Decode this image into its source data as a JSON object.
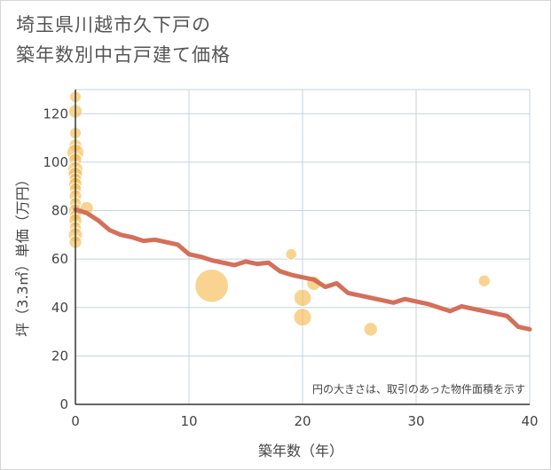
{
  "title": {
    "line1": "埼玉県川越市久下戸の",
    "line2": "築年数別中古戸建て価格"
  },
  "colors": {
    "bubble": "#f5b94e",
    "bubble_stroke": "#ffffff",
    "line": "#d4705a",
    "grid": "#c5d3df",
    "axis": "#333333"
  },
  "chart_data": {
    "type": "scatter",
    "title": "埼玉県川越市久下戸の築年数別中古戸建て価格",
    "xlabel": "築年数（年）",
    "ylabel": "坪（3.3㎡）単価（万円）",
    "xlim": [
      0,
      40
    ],
    "ylim": [
      0,
      130
    ],
    "xticks": [
      0,
      10,
      20,
      30,
      40
    ],
    "yticks": [
      0,
      20,
      40,
      60,
      80,
      100,
      120
    ],
    "grid": true,
    "note": "円の大きさは、取引のあった物件面積を示す",
    "bubbles": [
      {
        "x": 0,
        "y": 127,
        "size": 1.0
      },
      {
        "x": 0,
        "y": 121,
        "size": 1.6
      },
      {
        "x": 0,
        "y": 112,
        "size": 1.0
      },
      {
        "x": 0,
        "y": 107,
        "size": 1.3
      },
      {
        "x": 0,
        "y": 104,
        "size": 2.8
      },
      {
        "x": 0,
        "y": 101,
        "size": 1.4
      },
      {
        "x": 0,
        "y": 97,
        "size": 2.2
      },
      {
        "x": 0,
        "y": 95,
        "size": 1.8
      },
      {
        "x": 0,
        "y": 93,
        "size": 1.2
      },
      {
        "x": 0,
        "y": 91,
        "size": 1.5
      },
      {
        "x": 0,
        "y": 89,
        "size": 1.1
      },
      {
        "x": 0,
        "y": 86,
        "size": 1.3
      },
      {
        "x": 0,
        "y": 83,
        "size": 1.1
      },
      {
        "x": 0,
        "y": 80,
        "size": 1.6
      },
      {
        "x": 0,
        "y": 78,
        "size": 1.0
      },
      {
        "x": 0,
        "y": 76,
        "size": 1.4
      },
      {
        "x": 0,
        "y": 73,
        "size": 1.1
      },
      {
        "x": 0,
        "y": 70,
        "size": 1.8
      },
      {
        "x": 0,
        "y": 67,
        "size": 1.3
      },
      {
        "x": 1,
        "y": 81,
        "size": 1.5
      },
      {
        "x": 12,
        "y": 49,
        "size": 14.0
      },
      {
        "x": 19,
        "y": 62,
        "size": 0.9
      },
      {
        "x": 20,
        "y": 44,
        "size": 3.0
      },
      {
        "x": 20,
        "y": 36,
        "size": 3.2
      },
      {
        "x": 21,
        "y": 50,
        "size": 1.8
      },
      {
        "x": 26,
        "y": 31,
        "size": 1.6
      },
      {
        "x": 36,
        "y": 51,
        "size": 1.1
      }
    ],
    "series": [
      {
        "name": "trend",
        "x": [
          0,
          1,
          2,
          3,
          4,
          5,
          6,
          7,
          8,
          9,
          10,
          11,
          12,
          13,
          14,
          15,
          16,
          17,
          18,
          19,
          20,
          21,
          22,
          23,
          24,
          25,
          26,
          27,
          28,
          29,
          30,
          31,
          32,
          33,
          34,
          35,
          36,
          37,
          38,
          39,
          40
        ],
        "values": [
          80.5,
          79,
          76,
          72,
          70,
          69,
          67.5,
          68,
          67,
          66,
          62,
          61,
          59.5,
          58.5,
          57.5,
          59,
          58,
          58.5,
          55,
          53.5,
          52.5,
          51.5,
          48.5,
          50,
          46,
          45,
          44,
          43,
          42,
          43.5,
          42.5,
          41.5,
          40,
          38.5,
          40.5,
          39.5,
          38.5,
          37.5,
          36.5,
          32,
          31
        ]
      }
    ]
  }
}
